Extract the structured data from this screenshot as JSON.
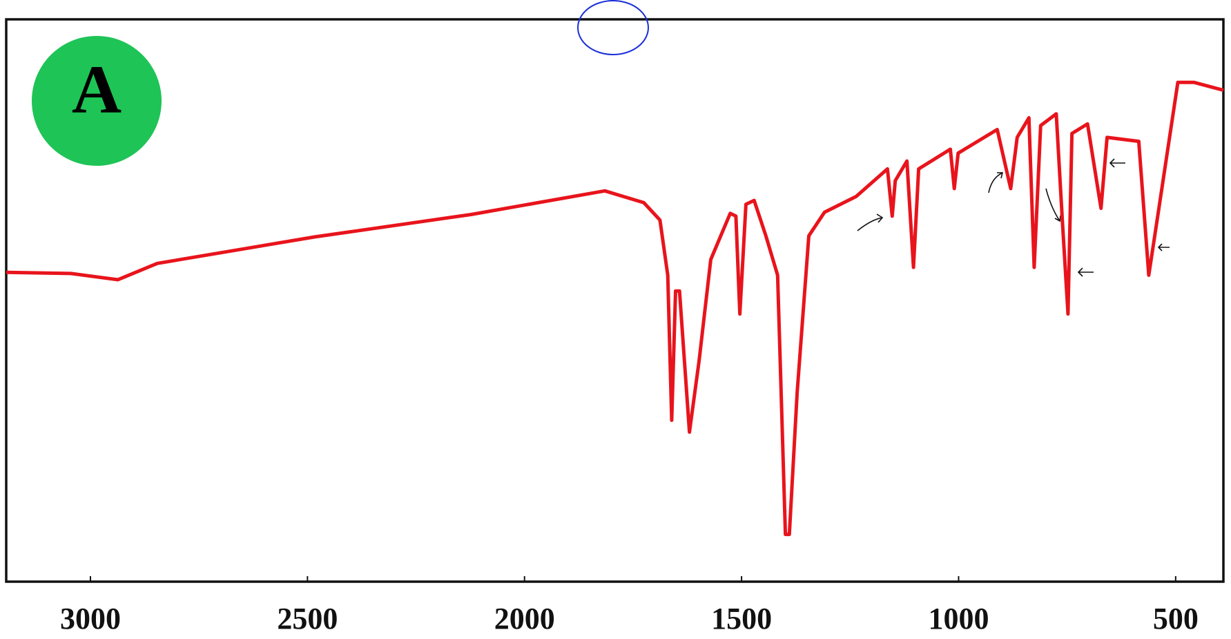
{
  "chart_data": {
    "type": "line",
    "label": "A",
    "color": "#e8141c",
    "x": [
      3194,
      3045,
      2937,
      2846,
      2484,
      2123,
      1815,
      1725,
      1688,
      1670,
      1661,
      1652,
      1643,
      1620,
      1598,
      1571,
      1526,
      1513,
      1504,
      1490,
      1471,
      1444,
      1417,
      1399,
      1390,
      1372,
      1345,
      1309,
      1236,
      1164,
      1153,
      1146,
      1119,
      1104,
      1092,
      1019,
      1010,
      1001,
      911,
      880,
      865,
      838,
      826,
      811,
      775,
      761,
      748,
      739,
      703,
      672,
      658,
      585,
      562,
      540,
      495,
      458,
      390
    ],
    "values": [
      55.0,
      54.8,
      53.7,
      56.6,
      61.3,
      65.3,
      69.5,
      67.4,
      64.3,
      54.5,
      28.7,
      51.7,
      51.7,
      26.6,
      39.2,
      57.3,
      65.5,
      65.0,
      47.6,
      67.1,
      67.8,
      61.5,
      54.5,
      8.4,
      8.4,
      33.6,
      61.5,
      65.7,
      68.5,
      73.4,
      65.0,
      71.3,
      74.8,
      55.9,
      73.4,
      76.9,
      69.9,
      76.2,
      80.4,
      69.9,
      79.0,
      82.5,
      55.9,
      81.1,
      83.2,
      64.3,
      47.6,
      79.7,
      81.4,
      66.4,
      79.0,
      78.3,
      54.5,
      65.7,
      88.8,
      88.8,
      87.4
    ],
    "xlim": [
      3194,
      390
    ],
    "xticks": [
      3000,
      2500,
      2000,
      1500,
      1000,
      500
    ],
    "ylim": [
      0,
      100
    ]
  }
}
